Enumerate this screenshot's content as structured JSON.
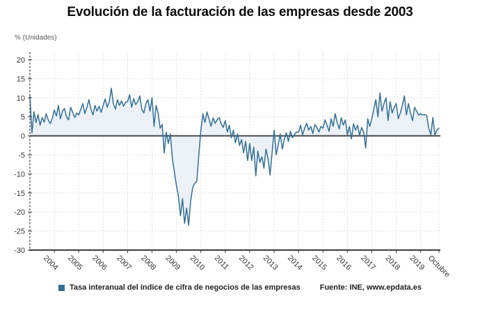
{
  "chart_data": {
    "type": "line",
    "title": "Evolución de la facturación de las empresas desde 2003",
    "ylabel": "% (Unidades)",
    "xlabel": "",
    "frequency": "monthly",
    "x_start": "2003-01",
    "x_end": "2019-10",
    "ylim": [
      -30,
      22
    ],
    "grid": true,
    "legend_position": "bottom",
    "legend": {
      "series_label": "Tasa interanual del índice de cifra de negocios de las empresas",
      "source": "Fuente: INE, www.epdata.es"
    },
    "y_ticks": [
      20,
      15,
      10,
      5,
      0,
      -5,
      -10,
      -15,
      -20,
      -25,
      -30
    ],
    "x_ticks": [
      {
        "label": "2004",
        "month_index": 12
      },
      {
        "label": "2005",
        "month_index": 24
      },
      {
        "label": "2006",
        "month_index": 36
      },
      {
        "label": "2007",
        "month_index": 48
      },
      {
        "label": "2008",
        "month_index": 60
      },
      {
        "label": "2009",
        "month_index": 72
      },
      {
        "label": "2010",
        "month_index": 84
      },
      {
        "label": "2011",
        "month_index": 96
      },
      {
        "label": "2012",
        "month_index": 108
      },
      {
        "label": "2013",
        "month_index": 120
      },
      {
        "label": "2014",
        "month_index": 132
      },
      {
        "label": "2015",
        "month_index": 144
      },
      {
        "label": "2016",
        "month_index": 156
      },
      {
        "label": "2017",
        "month_index": 168
      },
      {
        "label": "2018",
        "month_index": 180
      },
      {
        "label": "2019",
        "month_index": 192
      },
      {
        "label": "Octubre",
        "month_index": 201
      }
    ],
    "colors": {
      "line": "#336e93",
      "fill": "#e9eff6",
      "grid": "#cccccc",
      "axis": "#3c3c3c",
      "tick_text": "#333333"
    },
    "series": [
      {
        "name": "Tasa interanual del índice de cifra de negocios de las empresas",
        "values": [
          10.5,
          0.8,
          6.3,
          3.5,
          5.6,
          2.8,
          4.8,
          3.6,
          5.8,
          4.2,
          3.2,
          4.6,
          6.8,
          5.2,
          8.0,
          4.5,
          6.5,
          7.2,
          5.0,
          4.2,
          7.5,
          6.2,
          4.8,
          6.0,
          5.5,
          7.0,
          8.5,
          5.8,
          7.5,
          9.5,
          7.0,
          5.5,
          8.0,
          6.5,
          7.8,
          6.2,
          8.0,
          9.7,
          7.5,
          9.0,
          12.5,
          8.5,
          7.0,
          9.5,
          8.0,
          9.2,
          7.8,
          8.8,
          9.0,
          10.8,
          7.5,
          9.8,
          8.2,
          9.0,
          10.5,
          7.0,
          6.0,
          8.5,
          9.5,
          6.5,
          10.0,
          2.5,
          8.0,
          6.0,
          2.0,
          3.0,
          -4.5,
          1.0,
          -2.0,
          0.5,
          -6.0,
          -9.5,
          -13.0,
          -16.0,
          -21.0,
          -16.5,
          -23.0,
          -19.0,
          -23.5,
          -17.0,
          -13.5,
          -12.5,
          -12.0,
          -5.0,
          1.5,
          5.8,
          3.5,
          6.3,
          4.5,
          2.5,
          4.7,
          3.3,
          4.2,
          4.8,
          3.2,
          2.2,
          4.0,
          1.0,
          2.8,
          -0.5,
          1.5,
          -1.8,
          0.5,
          -2.5,
          -1.0,
          -4.5,
          -1.5,
          -6.5,
          -2.0,
          -6.5,
          -3.0,
          -10.5,
          -4.0,
          -7.0,
          -5.5,
          -8.5,
          -3.5,
          -6.0,
          -10.3,
          -4.5,
          1.5,
          -5.0,
          -2.5,
          0.5,
          -3.5,
          -1.0,
          0.8,
          -1.5,
          1.2,
          -0.5,
          0.3,
          1.0,
          1.0,
          2.8,
          0.3,
          2.0,
          3.3,
          1.5,
          2.5,
          0.6,
          3.0,
          2.2,
          1.0,
          2.5,
          2.0,
          4.2,
          2.8,
          1.2,
          4.5,
          2.5,
          5.8,
          3.5,
          1.8,
          4.8,
          2.8,
          4.2,
          0.3,
          2.5,
          -0.8,
          3.2,
          1.5,
          2.8,
          0.2,
          2.2,
          1.0,
          -3.2,
          4.5,
          2.5,
          4.5,
          7.0,
          9.5,
          5.0,
          11.3,
          6.5,
          8.5,
          10.0,
          4.0,
          9.0,
          6.0,
          7.5,
          8.5,
          4.5,
          6.0,
          8.0,
          10.5,
          5.5,
          8.5,
          6.0,
          4.0,
          7.5,
          6.5,
          5.5,
          5.8,
          5.5,
          5.6,
          5.3,
          2.0,
          0.3,
          4.8,
          0.2,
          1.5,
          2.0
        ]
      }
    ]
  }
}
